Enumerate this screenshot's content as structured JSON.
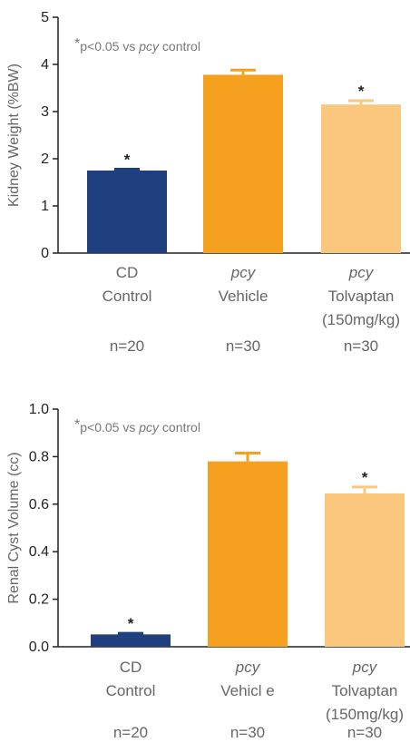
{
  "chart_data": [
    {
      "type": "bar",
      "ylabel": "Kidney Weight (%BW)",
      "ylim": [
        0,
        5
      ],
      "yticks": [
        "0",
        "1",
        "2",
        "3",
        "4",
        "5"
      ],
      "ytick_values": [
        0,
        1,
        2,
        3,
        4,
        5
      ],
      "annotation": {
        "star": "*",
        "text": "p<0.05 vs ",
        "italic": "pcy",
        "suffix": " control"
      },
      "categories": [
        {
          "lines": [
            "CD",
            "Control"
          ],
          "italic_first": false,
          "n": "n=20"
        },
        {
          "lines": [
            "pcy",
            "Vehicle"
          ],
          "italic_first": true,
          "n": "n=30"
        },
        {
          "lines": [
            "pcy",
            "Tolvaptan",
            "(150mg/kg)"
          ],
          "italic_first": true,
          "n": "n=30"
        }
      ],
      "values": [
        1.75,
        3.78,
        3.15
      ],
      "errors": [
        0.03,
        0.1,
        0.08
      ],
      "significance": [
        "*",
        "",
        "*"
      ],
      "colors": [
        "#1f3f7f",
        "#f5a01e",
        "#fbc77d"
      ]
    },
    {
      "type": "bar",
      "ylabel": "Renal Cyst Volume (cc)",
      "ylim": [
        0,
        1.0
      ],
      "yticks": [
        "0.0",
        "0.2",
        "0.4",
        "0.6",
        "0.8",
        "1.0"
      ],
      "ytick_values": [
        0,
        0.2,
        0.4,
        0.6,
        0.8,
        1.0
      ],
      "annotation": {
        "star": "*",
        "text": "p<0.05 vs ",
        "italic": "pcy",
        "suffix": " control"
      },
      "categories": [
        {
          "lines": [
            "CD",
            "Control"
          ],
          "italic_first": false,
          "n": "n=20"
        },
        {
          "lines": [
            "pcy",
            "Vehicl e"
          ],
          "italic_first": true,
          "n": "n=30"
        },
        {
          "lines": [
            "pcy",
            "Tolvaptan",
            "(150mg/kg)"
          ],
          "italic_first": true,
          "n": "n=30"
        }
      ],
      "values": [
        0.052,
        0.78,
        0.645
      ],
      "errors": [
        0.005,
        0.035,
        0.027
      ],
      "significance": [
        "*",
        "",
        "*"
      ],
      "colors": [
        "#1f3f7f",
        "#f5a01e",
        "#fbc77d"
      ]
    }
  ]
}
